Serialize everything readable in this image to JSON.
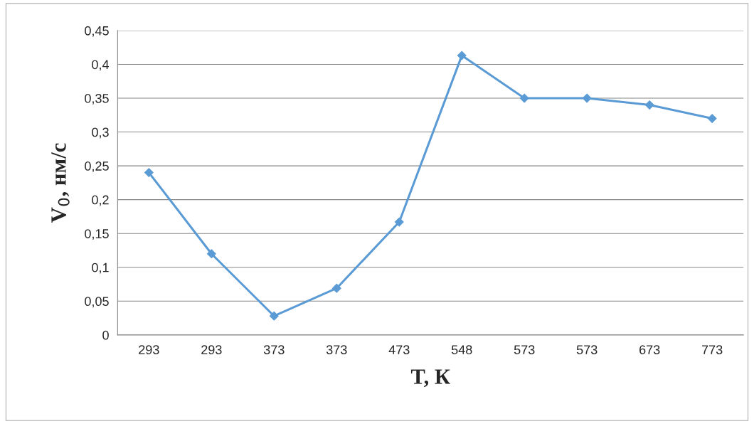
{
  "chart_data": {
    "type": "line",
    "xlabel": "T, К",
    "ylabel": "V$_{0}$, нм/с",
    "categories": [
      "293",
      "293",
      "373",
      "373",
      "473",
      "548",
      "573",
      "573",
      "673",
      "773"
    ],
    "series": [
      {
        "color": "#5b9bd5",
        "values": [
          0.24,
          0.12,
          0.028,
          0.069,
          0.167,
          0.413,
          0.35,
          0.35,
          0.34,
          0.32
        ]
      }
    ],
    "ylim": [
      0,
      0.45
    ],
    "yticks": [
      {
        "value": 0,
        "label": "0"
      },
      {
        "value": 0.05,
        "label": "0,05"
      },
      {
        "value": 0.1,
        "label": "0,1"
      },
      {
        "value": 0.15,
        "label": "0,15"
      },
      {
        "value": 0.2,
        "label": "0,2"
      },
      {
        "value": 0.25,
        "label": "0,25"
      },
      {
        "value": 0.3,
        "label": "0,3"
      },
      {
        "value": 0.35,
        "label": "0,35"
      },
      {
        "value": 0.4,
        "label": "0,4"
      },
      {
        "value": 0.45,
        "label": "0,45"
      }
    ],
    "grid": "y",
    "marker": "diamond",
    "line_style": "solid"
  }
}
